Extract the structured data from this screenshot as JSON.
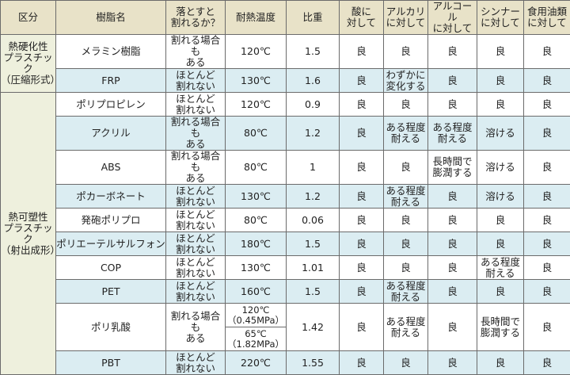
{
  "header": [
    "区分",
    "樹脂名",
    "落とすと\n割れるか？",
    "耐熱温度",
    "比重",
    "酸に\n対して",
    "アルカリ\nに対して",
    "アルコール\nに対して",
    "シンナー\nに対して",
    "食用油類\nに対して"
  ],
  "colors": {
    "header_bg": "#e8e2c8",
    "category_bg": "#eef0dd",
    "row_alt_bg": "#dbedf2",
    "row_bg": "#ffffff",
    "border": "#6b6b6b"
  },
  "categories": [
    {
      "label": "熱硬化性\nプラスチック\n（圧縮形式）",
      "rows": [
        {
          "name": "メラミン樹脂",
          "drop": "割れる場合も\nある",
          "heat": "120℃",
          "gravity": "1.5",
          "acid": "良",
          "alkali": "良",
          "alcohol": "良",
          "thinner": "良",
          "oil": "良"
        },
        {
          "name": "FRP",
          "drop": "ほとんど\n割れない",
          "heat": "130℃",
          "gravity": "1.6",
          "acid": "良",
          "alkali": "わずかに\n変化する",
          "alcohol": "良",
          "thinner": "良",
          "oil": "良"
        }
      ]
    },
    {
      "label": "熱可塑性\nプラスチック\n（射出成形）",
      "rows": [
        {
          "name": "ポリプロピレン",
          "drop": "ほとんど\n割れない",
          "heat": "120℃",
          "gravity": "0.9",
          "acid": "良",
          "alkali": "良",
          "alcohol": "良",
          "thinner": "良",
          "oil": "良"
        },
        {
          "name": "アクリル",
          "drop": "割れる場合も\nある",
          "heat": "80℃",
          "gravity": "1.2",
          "acid": "良",
          "alkali": "ある程度\n耐える",
          "alcohol": "ある程度\n耐える",
          "thinner": "溶ける",
          "oil": "良"
        },
        {
          "name": "ABS",
          "drop": "割れる場合も\nある",
          "heat": "80℃",
          "gravity": "1",
          "acid": "良",
          "alkali": "良",
          "alcohol": "長時間で\n膨潤する",
          "thinner": "溶ける",
          "oil": "良"
        },
        {
          "name": "ポカーボネート",
          "drop": "ほとんど\n割れない",
          "heat": "130℃",
          "gravity": "1.2",
          "acid": "良",
          "alkali": "ある程度\n耐える",
          "alcohol": "良",
          "thinner": "溶ける",
          "oil": "良"
        },
        {
          "name": "発砲ポリプロ",
          "drop": "ほとんど\n割れない",
          "heat": "80℃",
          "gravity": "0.06",
          "acid": "良",
          "alkali": "良",
          "alcohol": "良",
          "thinner": "良",
          "oil": "良"
        },
        {
          "name": "ポリエーテルサルフォン",
          "drop": "ほとんど\n割れない",
          "heat": "180℃",
          "gravity": "1.5",
          "acid": "良",
          "alkali": "良",
          "alcohol": "良",
          "thinner": "良",
          "oil": "良"
        },
        {
          "name": "COP",
          "drop": "ほとんど\n割れない",
          "heat": "130℃",
          "gravity": "1.01",
          "acid": "良",
          "alkali": "良",
          "alcohol": "良",
          "thinner": "ある程度\n耐える",
          "oil": "良"
        },
        {
          "name": "PET",
          "drop": "ほとんど\n割れない",
          "heat": "160℃",
          "gravity": "1.5",
          "acid": "良",
          "alkali": "ある程度\n耐える",
          "alcohol": "良",
          "thinner": "良",
          "oil": "良"
        },
        {
          "name": "ポリ乳酸",
          "drop": "割れる場合も\nある",
          "heat": "120℃\n（0.45MPa）",
          "heat2": "65℃\n（1.82MPa）",
          "gravity": "1.42",
          "acid": "良",
          "alkali": "ある程度\n耐える",
          "alcohol": "良",
          "thinner": "長時間で\n膨潤する",
          "oil": "良"
        },
        {
          "name": "PBT",
          "drop": "ほとんど\n割れない",
          "heat": "220℃",
          "gravity": "1.55",
          "acid": "良",
          "alkali": "良",
          "alcohol": "良",
          "thinner": "良",
          "oil": "良"
        }
      ]
    }
  ]
}
